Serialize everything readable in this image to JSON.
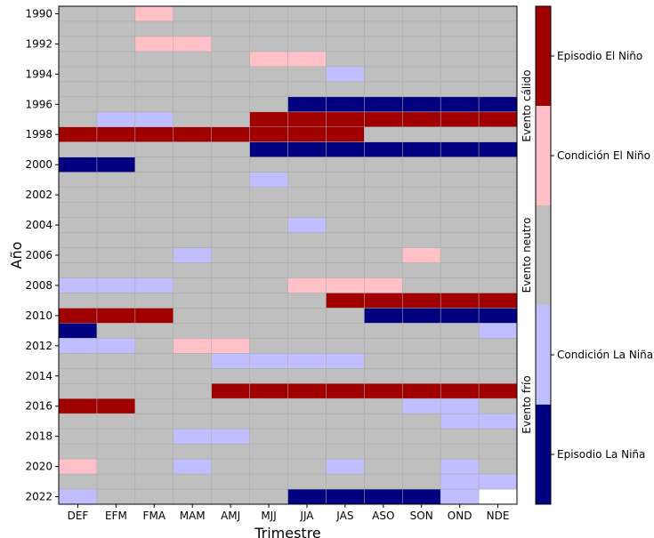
{
  "chart_data": {
    "type": "heatmap",
    "title": "",
    "xlabel": "Trimestre",
    "ylabel": "Año",
    "x_categories": [
      "DEF",
      "EFM",
      "FMA",
      "MAM",
      "AMJ",
      "MJJ",
      "JJA",
      "JAS",
      "ASO",
      "SON",
      "OND",
      "NDE"
    ],
    "years": [
      1990,
      1991,
      1992,
      1993,
      1994,
      1995,
      1996,
      1997,
      1998,
      1999,
      2000,
      2001,
      2002,
      2003,
      2004,
      2005,
      2006,
      2007,
      2008,
      2009,
      2010,
      2011,
      2012,
      2013,
      2014,
      2015,
      2016,
      2017,
      2018,
      2019,
      2020,
      2021,
      2022
    ],
    "y_tick_labels": [
      "1990",
      "1992",
      "1994",
      "1996",
      "1998",
      "2000",
      "2002",
      "2004",
      "2006",
      "2008",
      "2010",
      "2012",
      "2014",
      "2016",
      "2018",
      "2020",
      "2022"
    ],
    "value_scale": {
      "-2": "Episodio La Niña",
      "-1": "Condición La Niña",
      "0": "Evento neutro",
      "1": "Condición El Niño",
      "2": "Episodio El Niño"
    },
    "values": [
      [
        0,
        0,
        1,
        0,
        0,
        0,
        0,
        0,
        0,
        0,
        0,
        0
      ],
      [
        0,
        0,
        0,
        0,
        0,
        0,
        0,
        0,
        0,
        0,
        0,
        0
      ],
      [
        0,
        0,
        1,
        1,
        0,
        0,
        0,
        0,
        0,
        0,
        0,
        0
      ],
      [
        0,
        0,
        0,
        0,
        0,
        1,
        1,
        0,
        0,
        0,
        0,
        0
      ],
      [
        0,
        0,
        0,
        0,
        0,
        0,
        0,
        -1,
        0,
        0,
        0,
        0
      ],
      [
        0,
        0,
        0,
        0,
        0,
        0,
        0,
        0,
        0,
        0,
        0,
        0
      ],
      [
        0,
        0,
        0,
        0,
        0,
        0,
        -2,
        -2,
        -2,
        -2,
        -2,
        -2
      ],
      [
        0,
        -1,
        -1,
        0,
        0,
        2,
        2,
        2,
        2,
        2,
        2,
        2
      ],
      [
        2,
        2,
        2,
        2,
        2,
        2,
        2,
        2,
        0,
        0,
        0,
        0
      ],
      [
        0,
        0,
        0,
        0,
        0,
        -2,
        -2,
        -2,
        -2,
        -2,
        -2,
        -2
      ],
      [
        -2,
        -2,
        0,
        0,
        0,
        0,
        0,
        0,
        0,
        0,
        0,
        0
      ],
      [
        0,
        0,
        0,
        0,
        0,
        -1,
        0,
        0,
        0,
        0,
        0,
        0
      ],
      [
        0,
        0,
        0,
        0,
        0,
        0,
        0,
        0,
        0,
        0,
        0,
        0
      ],
      [
        0,
        0,
        0,
        0,
        0,
        0,
        0,
        0,
        0,
        0,
        0,
        0
      ],
      [
        0,
        0,
        0,
        0,
        0,
        0,
        -1,
        0,
        0,
        0,
        0,
        0
      ],
      [
        0,
        0,
        0,
        0,
        0,
        0,
        0,
        0,
        0,
        0,
        0,
        0
      ],
      [
        0,
        0,
        0,
        -1,
        0,
        0,
        0,
        0,
        0,
        1,
        0,
        0
      ],
      [
        0,
        0,
        0,
        0,
        0,
        0,
        0,
        0,
        0,
        0,
        0,
        0
      ],
      [
        -1,
        -1,
        -1,
        0,
        0,
        0,
        1,
        1,
        1,
        0,
        0,
        0
      ],
      [
        0,
        0,
        0,
        0,
        0,
        0,
        0,
        2,
        2,
        2,
        2,
        2
      ],
      [
        2,
        2,
        2,
        0,
        0,
        0,
        0,
        0,
        -2,
        -2,
        -2,
        -2
      ],
      [
        -2,
        0,
        0,
        0,
        0,
        0,
        0,
        0,
        0,
        0,
        0,
        -1
      ],
      [
        -1,
        -1,
        0,
        1,
        1,
        0,
        0,
        0,
        0,
        0,
        0,
        0
      ],
      [
        0,
        0,
        0,
        0,
        -1,
        -1,
        -1,
        -1,
        0,
        0,
        0,
        0
      ],
      [
        0,
        0,
        0,
        0,
        0,
        0,
        0,
        0,
        0,
        0,
        0,
        0
      ],
      [
        0,
        0,
        0,
        0,
        2,
        2,
        2,
        2,
        2,
        2,
        2,
        2
      ],
      [
        2,
        2,
        0,
        0,
        0,
        0,
        0,
        0,
        0,
        -1,
        -1,
        0
      ],
      [
        0,
        0,
        0,
        0,
        0,
        0,
        0,
        0,
        0,
        0,
        -1,
        -1
      ],
      [
        0,
        0,
        0,
        -1,
        -1,
        0,
        0,
        0,
        0,
        0,
        0,
        0
      ],
      [
        0,
        0,
        0,
        0,
        0,
        0,
        0,
        0,
        0,
        0,
        0,
        0
      ],
      [
        1,
        0,
        0,
        -1,
        0,
        0,
        0,
        -1,
        0,
        0,
        -1,
        0
      ],
      [
        0,
        0,
        0,
        0,
        0,
        0,
        0,
        0,
        0,
        0,
        -1,
        -1
      ],
      [
        -1,
        0,
        0,
        0,
        0,
        0,
        -2,
        -2,
        -2,
        -2,
        -1,
        null
      ]
    ],
    "colors": {
      "-2": "#000080",
      "-1": "#bfbfff",
      "0": "#bfbfbf",
      "1": "#ffc0c8",
      "2": "#a00000",
      "missing": "#ffffff"
    },
    "colorbar": {
      "tick_labels": [
        "Episodio El Niño",
        "Condición El Niño",
        "Condición La Niña",
        "Episodio La Niña"
      ],
      "group_labels": [
        "Evento cálido",
        "Evento neutro",
        "Evento frío"
      ],
      "placement": "right"
    },
    "grid": true
  }
}
